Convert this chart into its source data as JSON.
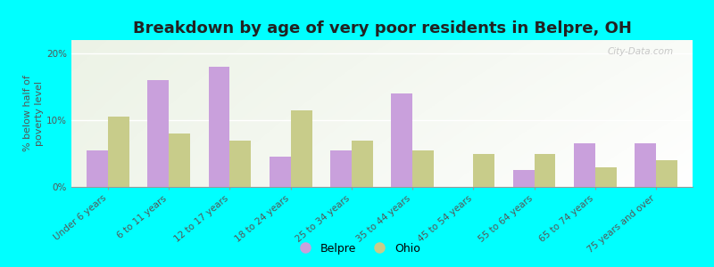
{
  "title": "Breakdown by age of very poor residents in Belpre, OH",
  "ylabel": "% below half of\npoverty level",
  "categories": [
    "Under 6 years",
    "6 to 11 years",
    "12 to 17 years",
    "18 to 24 years",
    "25 to 34 years",
    "35 to 44 years",
    "45 to 54 years",
    "55 to 64 years",
    "65 to 74 years",
    "75 years and over"
  ],
  "belpre_values": [
    5.5,
    16.0,
    18.0,
    4.5,
    5.5,
    14.0,
    0.0,
    2.5,
    6.5,
    6.5
  ],
  "ohio_values": [
    10.5,
    8.0,
    7.0,
    11.5,
    7.0,
    5.5,
    5.0,
    5.0,
    3.0,
    4.0
  ],
  "belpre_color": "#c9a0dc",
  "ohio_color": "#c8cc8a",
  "background_color": "#00ffff",
  "ylim": [
    0,
    22
  ],
  "yticks": [
    0,
    10,
    20
  ],
  "ytick_labels": [
    "0%",
    "10%",
    "20%"
  ],
  "bar_width": 0.35,
  "title_fontsize": 13,
  "axis_label_fontsize": 8,
  "tick_fontsize": 7.5,
  "legend_fontsize": 9,
  "watermark_text": "City-Data.com",
  "watermark_color": "#bbbbbb"
}
